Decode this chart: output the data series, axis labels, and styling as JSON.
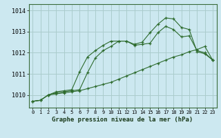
{
  "title": "Graphe pression niveau de la mer (hPa)",
  "bg_color": "#cce8f0",
  "grid_color": "#aacccc",
  "line_color": "#2d6b2d",
  "x_labels": [
    "0",
    "1",
    "2",
    "3",
    "4",
    "5",
    "6",
    "7",
    "8",
    "9",
    "10",
    "11",
    "12",
    "13",
    "14",
    "15",
    "16",
    "17",
    "18",
    "19",
    "20",
    "21",
    "22",
    "23"
  ],
  "ylim": [
    1009.4,
    1014.3
  ],
  "yticks": [
    1010,
    1011,
    1012,
    1013,
    1014
  ],
  "line1": [
    1009.7,
    1009.75,
    1010.0,
    1010.05,
    1010.1,
    1010.15,
    1010.2,
    1010.3,
    1010.4,
    1010.5,
    1010.6,
    1010.75,
    1010.9,
    1011.05,
    1011.2,
    1011.35,
    1011.5,
    1011.65,
    1011.8,
    1011.9,
    1012.05,
    1012.15,
    1012.3,
    1011.65
  ],
  "line2": [
    1009.7,
    1009.75,
    1010.0,
    1010.1,
    1010.15,
    1010.2,
    1010.25,
    1011.05,
    1011.75,
    1012.1,
    1012.3,
    1012.55,
    1012.55,
    1012.35,
    1012.4,
    1012.45,
    1012.95,
    1013.25,
    1013.1,
    1012.75,
    1012.8,
    1012.1,
    1012.0,
    1011.65
  ],
  "line3": [
    1009.7,
    1009.75,
    1010.0,
    1010.15,
    1010.2,
    1010.25,
    1011.1,
    1011.8,
    1012.1,
    1012.35,
    1012.55,
    1012.55,
    1012.55,
    1012.4,
    1012.5,
    1012.95,
    1013.35,
    1013.65,
    1013.6,
    1013.2,
    1013.1,
    1012.05,
    1011.95,
    1011.65
  ]
}
